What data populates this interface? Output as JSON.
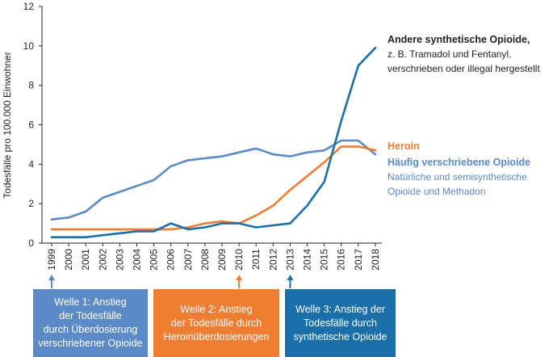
{
  "chart_data": {
    "type": "line",
    "ylabel": "Todesfälle pro 100.000 Einwohner",
    "xlabel": "",
    "ylim": [
      0,
      12
    ],
    "yticks": [
      0,
      2,
      4,
      6,
      8,
      10,
      12
    ],
    "x": [
      "1999",
      "2000",
      "2001",
      "2002",
      "2003",
      "2004",
      "2005",
      "2006",
      "2007",
      "2008",
      "2009",
      "2010",
      "2011",
      "2012",
      "2013",
      "2014",
      "2015",
      "2016",
      "2017",
      "2018"
    ],
    "series": [
      {
        "name": "Andere synthetische Opioide,",
        "description": "z. B. Tramadol und Fentanyl,\nverschrieben oder illegal hergestellt",
        "color": "#1a6fa8",
        "values": [
          0.3,
          0.3,
          0.3,
          0.4,
          0.5,
          0.6,
          0.6,
          1.0,
          0.7,
          0.8,
          1.0,
          1.0,
          0.8,
          0.9,
          1.0,
          1.9,
          3.1,
          6.2,
          9.0,
          9.9
        ]
      },
      {
        "name": "Heroin",
        "description": "",
        "color": "#ef7d32",
        "values": [
          0.7,
          0.7,
          0.7,
          0.7,
          0.7,
          0.7,
          0.7,
          0.7,
          0.8,
          1.0,
          1.1,
          1.0,
          1.4,
          1.9,
          2.7,
          3.4,
          4.1,
          4.9,
          4.9,
          4.7
        ]
      },
      {
        "name": "Häufig verschriebene Opioide",
        "description": "Natürliche und semisynthetische\nOpioide und Methadon",
        "color": "#5b8ac6",
        "values": [
          1.2,
          1.3,
          1.6,
          2.3,
          2.6,
          2.9,
          3.2,
          3.9,
          4.2,
          4.3,
          4.4,
          4.6,
          4.8,
          4.5,
          4.4,
          4.6,
          4.7,
          5.2,
          5.2,
          4.5
        ]
      }
    ]
  },
  "waves": [
    {
      "label": "Welle 1: Anstieg\nder Todesfälle\ndurch Überdosierung\nverschriebener Opioide",
      "year": "1999",
      "color": "#5b8ac6"
    },
    {
      "label": "Welle 2: Anstieg\nder Todesfälle durch\nHeroinüberdosierungen",
      "year": "2010",
      "color": "#ef7d32"
    },
    {
      "label": "Welle 3: Anstieg der\nTodesfälle durch\nsynthetische Opioide",
      "year": "2013",
      "color": "#1a6fa8"
    }
  ]
}
